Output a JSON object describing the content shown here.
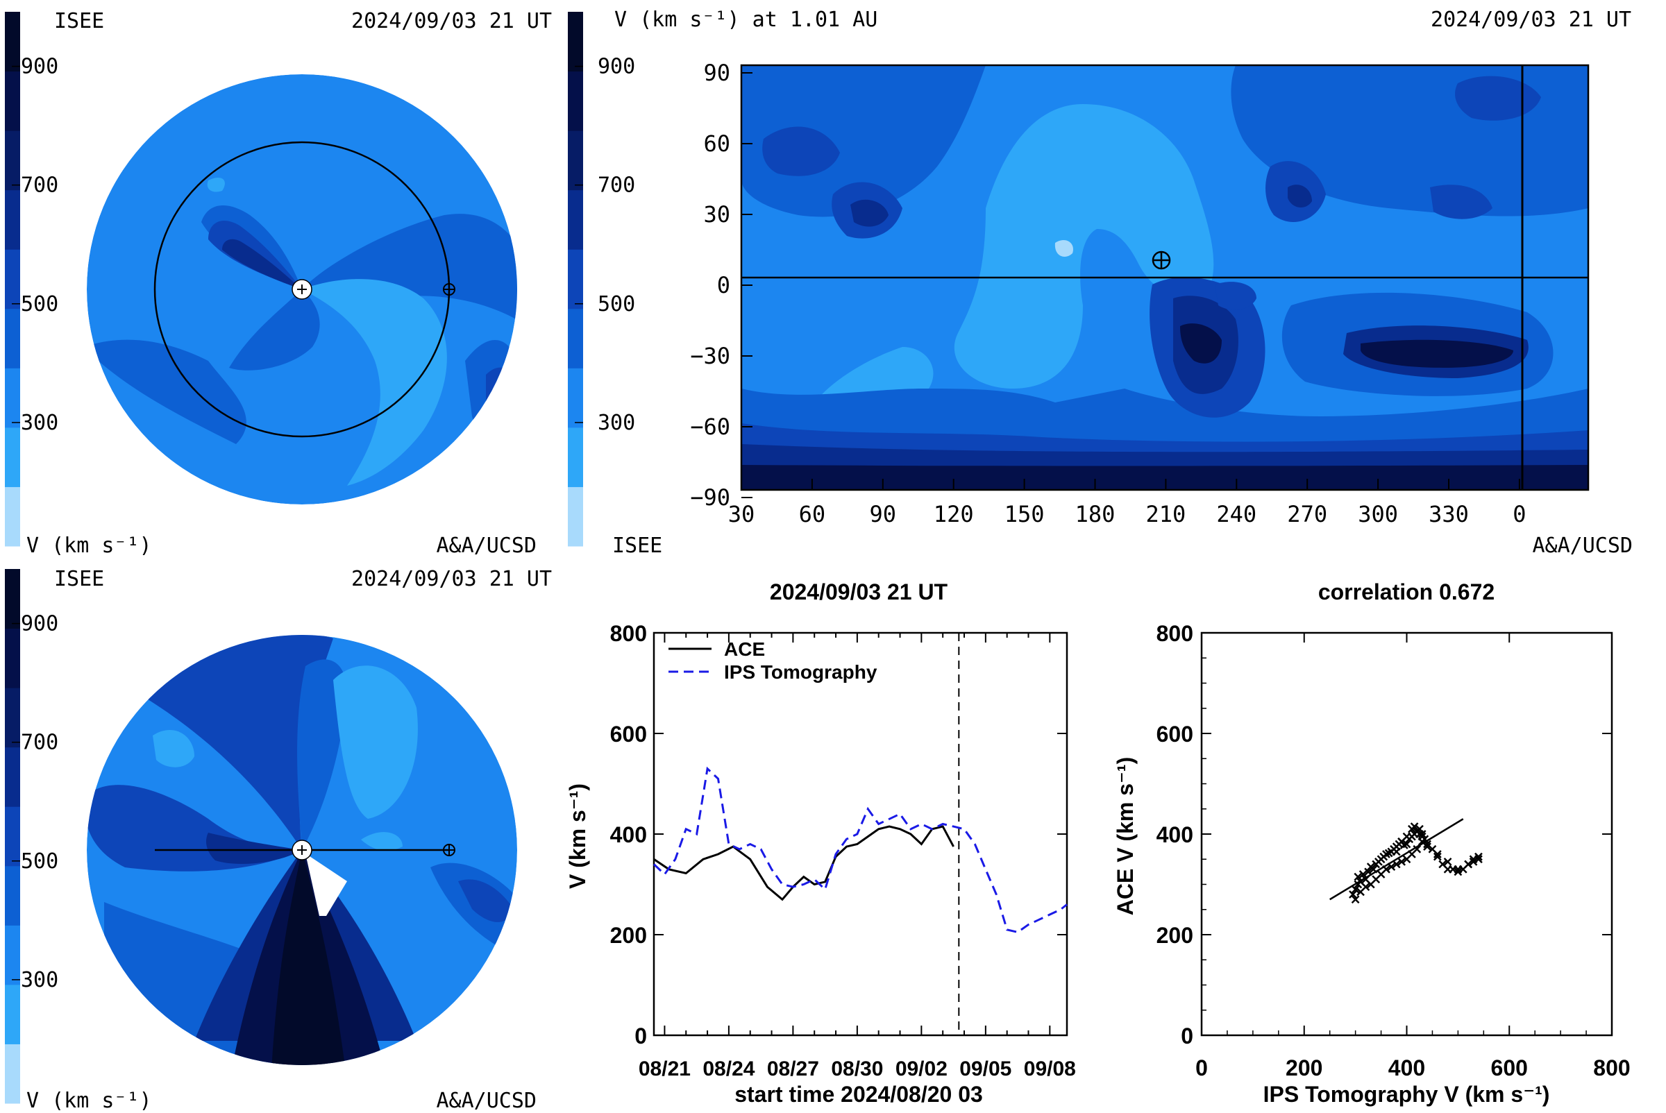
{
  "colors": {
    "levels": [
      "#a8dafc",
      "#2ea7f8",
      "#1c86f0",
      "#0d60d3",
      "#0d45b8",
      "#082c8e",
      "#061c66",
      "#04104a",
      "#020a2a"
    ],
    "series_ace": "#000000",
    "series_ips": "#1a1ae6"
  },
  "colorbar_ticks": [
    "900",
    "700",
    "500",
    "300"
  ],
  "panels": {
    "tl": {
      "org": "ISEE",
      "time": "2024/09/03 21 UT",
      "unit": "V (km s⁻¹)",
      "credit": "A&A/UCSD"
    },
    "tr": {
      "title": "V (km s⁻¹) at 1.01 AU",
      "time": "2024/09/03 21 UT",
      "org": "ISEE",
      "credit": "A&A/UCSD"
    },
    "bl": {
      "org": "ISEE",
      "time": "2024/09/03 21 UT",
      "unit": "V (km s⁻¹)",
      "credit": "A&A/UCSD"
    }
  },
  "chart_data": [
    {
      "type": "heatmap",
      "panel": "synoptic map",
      "title": "V (km s⁻¹) at 1.01 AU",
      "x_ticks": [
        "30",
        "60",
        "90",
        "120",
        "150",
        "180",
        "210",
        "240",
        "270",
        "300",
        "330",
        "0"
      ],
      "y_ticks": [
        "90",
        "60",
        "30",
        "0",
        "−30",
        "−60",
        "−90"
      ],
      "xlim": [
        30,
        390
      ],
      "ylim": [
        -90,
        90
      ],
      "earth_marker": {
        "x": 207,
        "y": 8
      },
      "equator_line": 0,
      "current_longitude_line": 0,
      "colorbar": {
        "ticks": [
          900,
          700,
          500,
          300
        ],
        "unit": "V (km s⁻¹)"
      }
    },
    {
      "type": "line",
      "title": "2024/09/03 21 UT",
      "xlabel": "start time 2024/08/20 03",
      "ylabel": "V (km s⁻¹)",
      "x_tick_labels": [
        "08/21",
        "08/24",
        "08/27",
        "08/30",
        "09/02",
        "09/05",
        "09/08"
      ],
      "y_ticks": [
        "0",
        "200",
        "400",
        "600",
        "800"
      ],
      "xlim": [
        0.5,
        19.8
      ],
      "ylim": [
        0,
        800
      ],
      "now_marker_day": 14.75,
      "series": [
        {
          "name": "ACE",
          "style": "solid",
          "x": [
            0.5,
            1.2,
            2,
            2.8,
            3.5,
            4.2,
            5,
            5.8,
            6.5,
            7,
            7.5,
            8,
            8.5,
            9,
            9.5,
            10,
            10.5,
            11,
            11.5,
            12,
            12.5,
            13,
            13.5,
            14,
            14.5
          ],
          "y": [
            350,
            330,
            322,
            350,
            360,
            375,
            350,
            295,
            270,
            295,
            315,
            300,
            305,
            355,
            375,
            380,
            395,
            410,
            415,
            410,
            400,
            380,
            410,
            415,
            375
          ]
        },
        {
          "name": "IPS Tomography",
          "style": "dashed",
          "x": [
            0.5,
            1,
            1.5,
            2,
            2.5,
            3,
            3.5,
            4,
            4.5,
            5,
            5.5,
            6,
            6.5,
            7,
            7.5,
            8,
            8.5,
            9,
            9.5,
            10,
            10.5,
            11,
            11.5,
            12,
            12.5,
            13,
            13.5,
            14,
            14.5,
            15,
            15.5,
            16,
            16.5,
            17,
            17.5,
            18,
            18.5,
            19,
            19.5,
            19.8
          ],
          "y": [
            340,
            320,
            350,
            410,
            400,
            530,
            510,
            380,
            370,
            380,
            370,
            330,
            300,
            295,
            300,
            310,
            290,
            360,
            390,
            400,
            450,
            420,
            430,
            440,
            410,
            420,
            410,
            420,
            415,
            410,
            380,
            330,
            280,
            210,
            205,
            220,
            230,
            240,
            250,
            260
          ]
        }
      ]
    },
    {
      "type": "scatter",
      "title": "correlation 0.672",
      "xlabel": "IPS Tomography V (km s⁻¹)",
      "ylabel": "ACE V (km s⁻¹)",
      "x_ticks": [
        "0",
        "200",
        "400",
        "600",
        "800"
      ],
      "y_ticks": [
        "0",
        "200",
        "400",
        "600",
        "800"
      ],
      "xlim": [
        0,
        800
      ],
      "ylim": [
        0,
        800
      ],
      "fit_line": {
        "x": [
          250,
          510
        ],
        "y": [
          270,
          430
        ]
      },
      "points": {
        "x": [
          295,
          300,
          305,
          310,
          305,
          315,
          320,
          325,
          330,
          335,
          340,
          345,
          350,
          355,
          360,
          365,
          370,
          375,
          380,
          385,
          390,
          395,
          400,
          405,
          410,
          415,
          420,
          425,
          430,
          410,
          400,
          390,
          380,
          430,
          440,
          450,
          460,
          470,
          480,
          490,
          500,
          510,
          520,
          530,
          540,
          300,
          310,
          320,
          330,
          340,
          350,
          360,
          370,
          380,
          390,
          400,
          410,
          420,
          440,
          460,
          480,
          500,
          520,
          530,
          540,
          415,
          420,
          425,
          430,
          435
        ],
        "y": [
          280,
          290,
          300,
          305,
          315,
          320,
          310,
          325,
          335,
          330,
          340,
          345,
          350,
          355,
          360,
          362,
          365,
          370,
          375,
          380,
          385,
          378,
          380,
          390,
          395,
          400,
          405,
          410,
          400,
          410,
          395,
          385,
          365,
          385,
          380,
          370,
          355,
          340,
          330,
          330,
          325,
          330,
          340,
          350,
          355,
          270,
          285,
          295,
          300,
          310,
          320,
          330,
          335,
          340,
          345,
          350,
          360,
          370,
          375,
          360,
          345,
          330,
          340,
          345,
          350,
          415,
          405,
          400,
          395,
          390
        ]
      }
    }
  ]
}
